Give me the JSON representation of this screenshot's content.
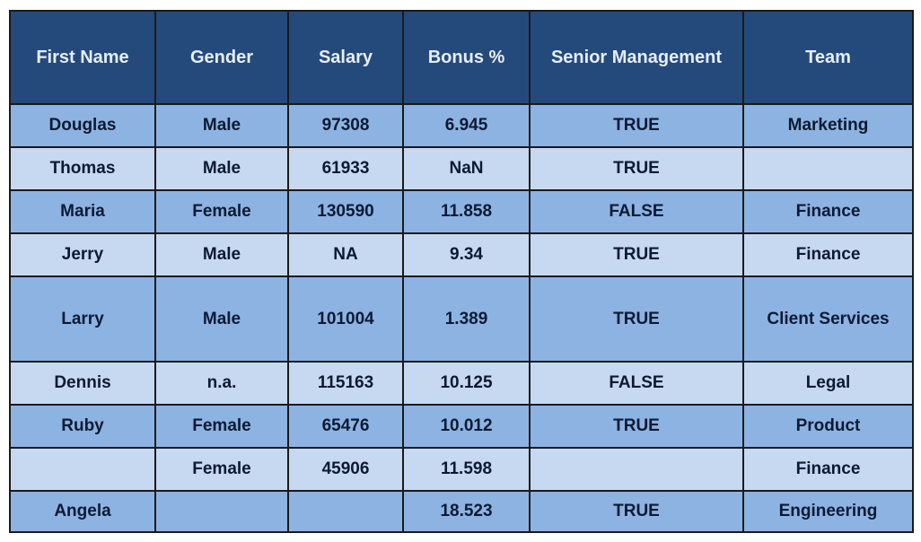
{
  "table": {
    "columns": [
      "First Name",
      "Gender",
      "Salary",
      "Bonus %",
      "Senior Management",
      "Team"
    ],
    "rows": [
      [
        "Douglas",
        "Male",
        "97308",
        "6.945",
        "TRUE",
        "Marketing"
      ],
      [
        "Thomas",
        "Male",
        "61933",
        "NaN",
        "TRUE",
        ""
      ],
      [
        "Maria",
        "Female",
        "130590",
        "11.858",
        "FALSE",
        "Finance"
      ],
      [
        "Jerry",
        "Male",
        "NA",
        "9.34",
        "TRUE",
        "Finance"
      ],
      [
        "Larry",
        "Male",
        "101004",
        "1.389",
        "TRUE",
        "Client Services"
      ],
      [
        "Dennis",
        "n.a.",
        "115163",
        "10.125",
        "FALSE",
        "Legal"
      ],
      [
        "Ruby",
        "Female",
        "65476",
        "10.012",
        "TRUE",
        "Product"
      ],
      [
        "",
        "Female",
        "45906",
        "11.598",
        "",
        "Finance"
      ],
      [
        "Angela",
        "",
        "",
        "18.523",
        "TRUE",
        "Engineering"
      ]
    ]
  },
  "colors": {
    "header_bg": "#244a7c",
    "row_dark": "#8db3e2",
    "row_light": "#c6d9f0"
  }
}
